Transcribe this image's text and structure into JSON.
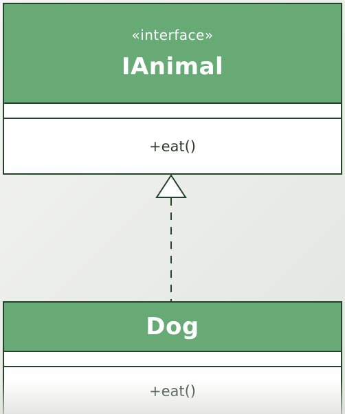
{
  "interface_class": {
    "stereotype": "«interface»",
    "name": "IAnimal",
    "methods": [
      "+eat()"
    ]
  },
  "implementing_class": {
    "name": "Dog",
    "methods": [
      "+eat()"
    ]
  },
  "relationship": {
    "type": "realization",
    "from": "Dog",
    "to": "IAnimal"
  },
  "colors": {
    "header_fill": "#67aa76",
    "border": "#23422b",
    "header_text": "#ffffff",
    "body_text": "#2c3a2f"
  }
}
